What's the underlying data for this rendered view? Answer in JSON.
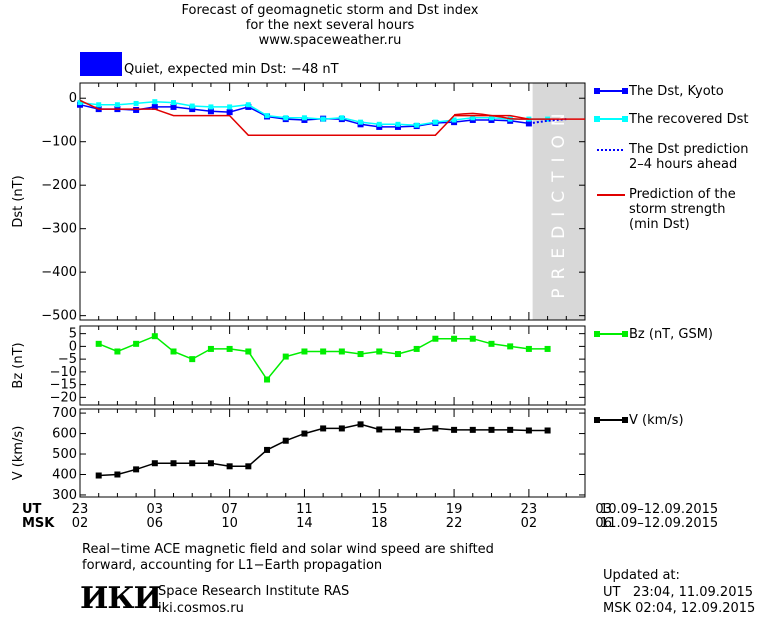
{
  "header": {
    "title_line1": "Forecast of geomagnetic storm and Dst index",
    "title_line2": "for the next several hours",
    "title_line3": "www.spaceweather.ru",
    "status_color": "#0000ff",
    "status_text": "Quiet, expected min Dst: −48 nT"
  },
  "prediction_label": "PREDICTION",
  "legend": {
    "dst_kyoto": "The Dst, Kyoto",
    "recovered": "The recovered Dst",
    "prediction_line1": "The Dst prediction",
    "prediction_line2": "2–4 hours ahead",
    "storm_line1": "Prediction of the",
    "storm_line2": "storm strength",
    "storm_line3": "(min Dst)",
    "bz": "Bz (nT, GSM)",
    "v": "V (km/s)"
  },
  "time_axis": {
    "ut_label": "UT",
    "msk_label": "MSK",
    "ut_ticks": [
      "23",
      "03",
      "07",
      "11",
      "15",
      "19",
      "23",
      "03"
    ],
    "msk_ticks": [
      "02",
      "06",
      "10",
      "14",
      "18",
      "22",
      "02",
      "06"
    ],
    "ut_range": "10.09–12.09.2015",
    "msk_range": "11.09–12.09.2015"
  },
  "footer": {
    "note_line1": "Real−time ACE magnetic field and solar wind speed are shifted",
    "note_line2": "forward, accounting for L1−Earth propagation",
    "logo": "ИКИ",
    "institute": "Space Research Institute RAS",
    "site": "iki.cosmos.ru",
    "updated_label": "Updated at:",
    "updated_ut": "UT   23:04, 11.09.2015",
    "updated_msk": "MSK 02:04, 12.09.2015"
  },
  "chart_data": [
    {
      "type": "line",
      "ylabel": "Dst (nT)",
      "ylim": [
        -510,
        35
      ],
      "xlim": [
        23,
        50
      ],
      "y_ticks": [
        0,
        -100,
        -200,
        -300,
        -400,
        -500
      ],
      "y_tick_labels": [
        "0",
        "−100",
        "−200",
        "−300",
        "−400",
        "−500"
      ],
      "prediction_region_start": 47.2,
      "series": [
        {
          "name": "The Dst, Kyoto",
          "color": "#0000ff",
          "x": [
            23,
            24,
            25,
            26,
            27,
            28,
            29,
            30,
            31,
            32,
            33,
            34,
            35,
            36,
            37,
            38,
            39,
            40,
            41,
            42,
            43,
            44,
            45,
            46,
            47
          ],
          "y": [
            -15,
            -25,
            -25,
            -27,
            -20,
            -20,
            -25,
            -30,
            -32,
            -20,
            -42,
            -48,
            -50,
            -47,
            -48,
            -60,
            -66,
            -66,
            -64,
            -57,
            -55,
            -50,
            -50,
            -52,
            -58
          ]
        },
        {
          "name": "The recovered Dst",
          "color": "#00ffff",
          "x": [
            23,
            24,
            25,
            26,
            27,
            28,
            29,
            30,
            31,
            32,
            33,
            34,
            35,
            36,
            37,
            38,
            39,
            40,
            41,
            42,
            43,
            44,
            45,
            46,
            47,
            48
          ],
          "y": [
            -10,
            -15,
            -15,
            -12,
            -8,
            -10,
            -18,
            -20,
            -20,
            -15,
            -40,
            -45,
            -45,
            -48,
            -45,
            -55,
            -60,
            -60,
            -62,
            -55,
            -50,
            -45,
            -45,
            -48,
            -48,
            -48
          ]
        },
        {
          "name": "The Dst prediction",
          "color": "#0000ff",
          "dotted": true,
          "x": [
            47,
            48,
            49
          ],
          "y": [
            -58,
            -52,
            -48
          ]
        },
        {
          "name": "Prediction of the storm strength",
          "color": "#e00000",
          "x": [
            23,
            24,
            27,
            28,
            30,
            31,
            32,
            33,
            34,
            35,
            36,
            37,
            38,
            39,
            40,
            41,
            42,
            43,
            44,
            45,
            46,
            47,
            48,
            49,
            50
          ],
          "y": [
            -5,
            -25,
            -25,
            -40,
            -40,
            -40,
            -85,
            -85,
            -85,
            -85,
            -85,
            -85,
            -85,
            -85,
            -85,
            -85,
            -85,
            -40,
            -40,
            -40,
            -40,
            -48,
            -48,
            -48,
            -48
          ]
        },
        {
          "name": "Prediction of the storm strength (secondary)",
          "color": "#e00000",
          "x": [
            43,
            43.5,
            44,
            44.5,
            45,
            45.5,
            46,
            46.5,
            47
          ],
          "y": [
            -38,
            -36,
            -35,
            -37,
            -40,
            -43,
            -47,
            -48,
            -48
          ]
        }
      ]
    },
    {
      "type": "line",
      "ylabel": "Bz (nT)",
      "ylim": [
        -23,
        8
      ],
      "xlim": [
        23,
        50
      ],
      "y_ticks": [
        5,
        0,
        -5,
        -10,
        -15,
        -20
      ],
      "y_tick_labels": [
        "5",
        "0",
        "−5",
        "−10",
        "−15",
        "−20"
      ],
      "series": [
        {
          "name": "Bz (nT, GSM)",
          "color": "#00ee00",
          "x": [
            24,
            25,
            26,
            27,
            28,
            29,
            30,
            31,
            32,
            33,
            34,
            35,
            36,
            37,
            38,
            39,
            40,
            41,
            42,
            43,
            44,
            45,
            46,
            47,
            48
          ],
          "y": [
            1,
            -2,
            1,
            4,
            -2,
            -5,
            -1,
            -1,
            -2,
            -13,
            -4,
            -2,
            -2,
            -2,
            -3,
            -2,
            -3,
            -1,
            3,
            3,
            3,
            1,
            0,
            -1,
            -1
          ]
        }
      ]
    },
    {
      "type": "line",
      "ylabel": "V (km/s)",
      "ylim": [
        290,
        720
      ],
      "xlim": [
        23,
        50
      ],
      "y_ticks": [
        700,
        600,
        500,
        400,
        300
      ],
      "y_tick_labels": [
        "700",
        "600",
        "500",
        "400",
        "300"
      ],
      "series": [
        {
          "name": "V (km/s)",
          "color": "#000000",
          "x": [
            24,
            25,
            26,
            27,
            28,
            29,
            30,
            31,
            32,
            33,
            34,
            35,
            36,
            37,
            38,
            39,
            40,
            41,
            42,
            43,
            44,
            45,
            46,
            47,
            48
          ],
          "y": [
            395,
            400,
            425,
            455,
            455,
            455,
            455,
            440,
            440,
            520,
            565,
            600,
            625,
            625,
            645,
            620,
            620,
            618,
            625,
            618,
            618,
            618,
            618,
            615,
            615
          ]
        }
      ]
    }
  ]
}
